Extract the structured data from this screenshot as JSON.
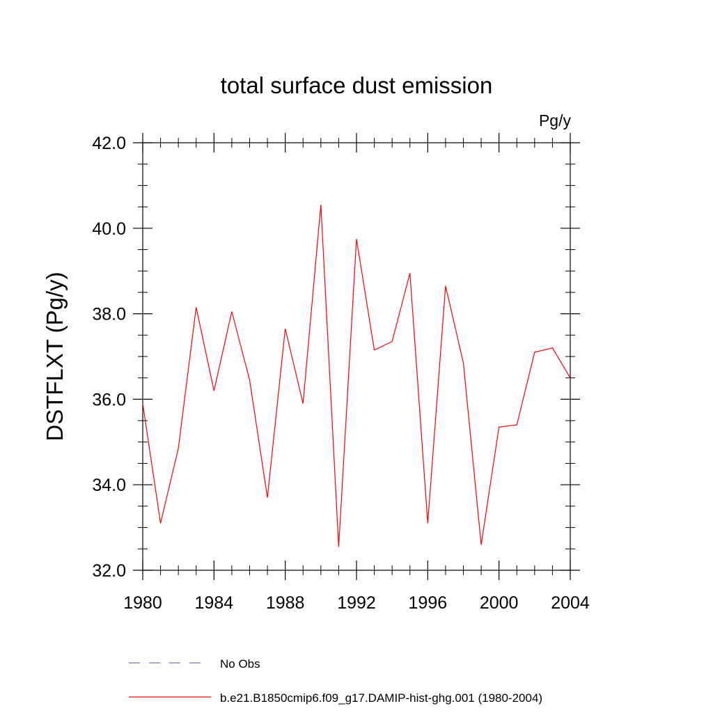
{
  "chart_data": {
    "type": "line",
    "title": "total surface dust emission",
    "units_label": "Pg/y",
    "ylabel": "DSTFLXT  (Pg/y)",
    "xlabel": "",
    "xlim": [
      1980,
      2004
    ],
    "ylim": [
      32.0,
      42.0
    ],
    "xticks": [
      1980,
      1984,
      1988,
      1992,
      1996,
      2000,
      2004
    ],
    "yticks": [
      "32.0",
      "34.0",
      "36.0",
      "38.0",
      "40.0",
      "42.0"
    ],
    "grid": false,
    "legend_position": "bottom",
    "legend": [
      {
        "label": "No Obs",
        "color": "#7a6fb8",
        "style": "dashed"
      },
      {
        "label": "b.e21.B1850cmip6.f09_g17.DAMIP-hist-ghg.001 (1980-2004)",
        "color": "#ff0000",
        "style": "solid"
      }
    ],
    "series": [
      {
        "color": "#ff0000",
        "x": [
          1980,
          1981,
          1982,
          1983,
          1984,
          1985,
          1986,
          1987,
          1988,
          1989,
          1990,
          1991,
          1992,
          1993,
          1994,
          1995,
          1996,
          1997,
          1998,
          1999,
          2000,
          2001,
          2002,
          2003,
          2004
        ],
        "values": [
          35.9,
          33.1,
          34.85,
          38.15,
          36.2,
          38.05,
          36.45,
          33.7,
          37.65,
          35.9,
          40.55,
          32.55,
          39.75,
          37.15,
          37.35,
          38.95,
          33.1,
          38.65,
          36.85,
          32.6,
          35.35,
          35.4,
          37.1,
          37.2,
          36.5
        ]
      }
    ]
  }
}
